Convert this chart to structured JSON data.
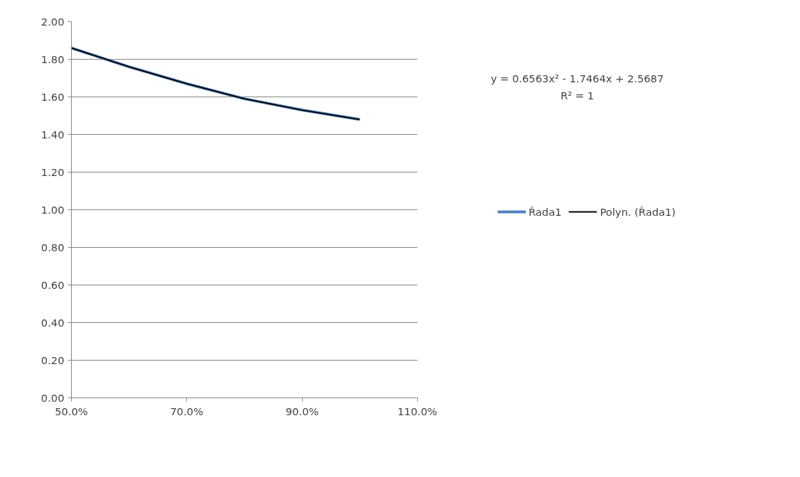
{
  "chart_data": {
    "type": "line",
    "x": [
      0.5,
      0.6,
      0.7,
      0.8,
      0.9,
      1.0
    ],
    "series": [
      {
        "name": "Řada1",
        "color": "#4f81bd",
        "values": [
          1.86,
          1.76,
          1.67,
          1.59,
          1.53,
          1.48
        ]
      },
      {
        "name": "Polyn. (Řada1)",
        "color": "#000000",
        "values": [
          1.86,
          1.76,
          1.67,
          1.59,
          1.53,
          1.48
        ]
      }
    ],
    "xlim": [
      0.5,
      1.1
    ],
    "xticks": [
      {
        "value": 0.5,
        "label": "50.0%"
      },
      {
        "value": 0.7,
        "label": "70.0%"
      },
      {
        "value": 0.9,
        "label": "90.0%"
      },
      {
        "value": 1.1,
        "label": "110.0%"
      }
    ],
    "ylim": [
      0,
      2
    ],
    "yticks": [
      {
        "value": 0,
        "label": "0.00"
      },
      {
        "value": 0.2,
        "label": "0.20"
      },
      {
        "value": 0.4,
        "label": "0.40"
      },
      {
        "value": 0.6,
        "label": "0.60"
      },
      {
        "value": 0.8,
        "label": "0.80"
      },
      {
        "value": 1.0,
        "label": "1.00"
      },
      {
        "value": 1.2,
        "label": "1.20"
      },
      {
        "value": 1.4,
        "label": "1.40"
      },
      {
        "value": 1.6,
        "label": "1.60"
      },
      {
        "value": 1.8,
        "label": "1.80"
      },
      {
        "value": 2.0,
        "label": "2.00"
      }
    ],
    "annotations": [
      "y = 0.6563x² - 1.7464x + 2.5687",
      "R² = 1"
    ],
    "grid": "y",
    "legend": "right",
    "marker": "none",
    "line_style": "solid"
  }
}
